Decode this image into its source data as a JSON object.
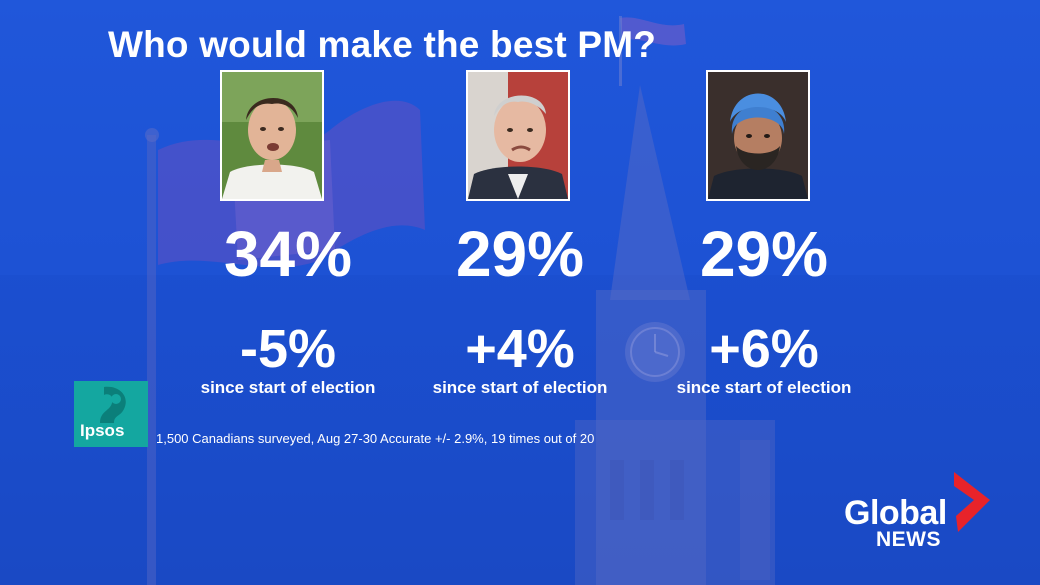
{
  "headline": "Who would make the best PM?",
  "candidates": [
    {
      "share": "34%",
      "change": "-5%",
      "change_note": "since start of election"
    },
    {
      "share": "29%",
      "change": "+4%",
      "change_note": "since start of election"
    },
    {
      "share": "29%",
      "change": "+6%",
      "change_note": "since start of election"
    }
  ],
  "pollster": {
    "name": "Ipsos",
    "methodology": "1,500 Canadians surveyed, Aug 27-30 Accurate +/- 2.9%, 19 times out of 20",
    "brand_color": "#14a7a0"
  },
  "network": {
    "name": "Global",
    "sub": "NEWS",
    "accent_color": "#e8232a"
  },
  "colors": {
    "background": "#1f56d9",
    "text": "#ffffff"
  }
}
